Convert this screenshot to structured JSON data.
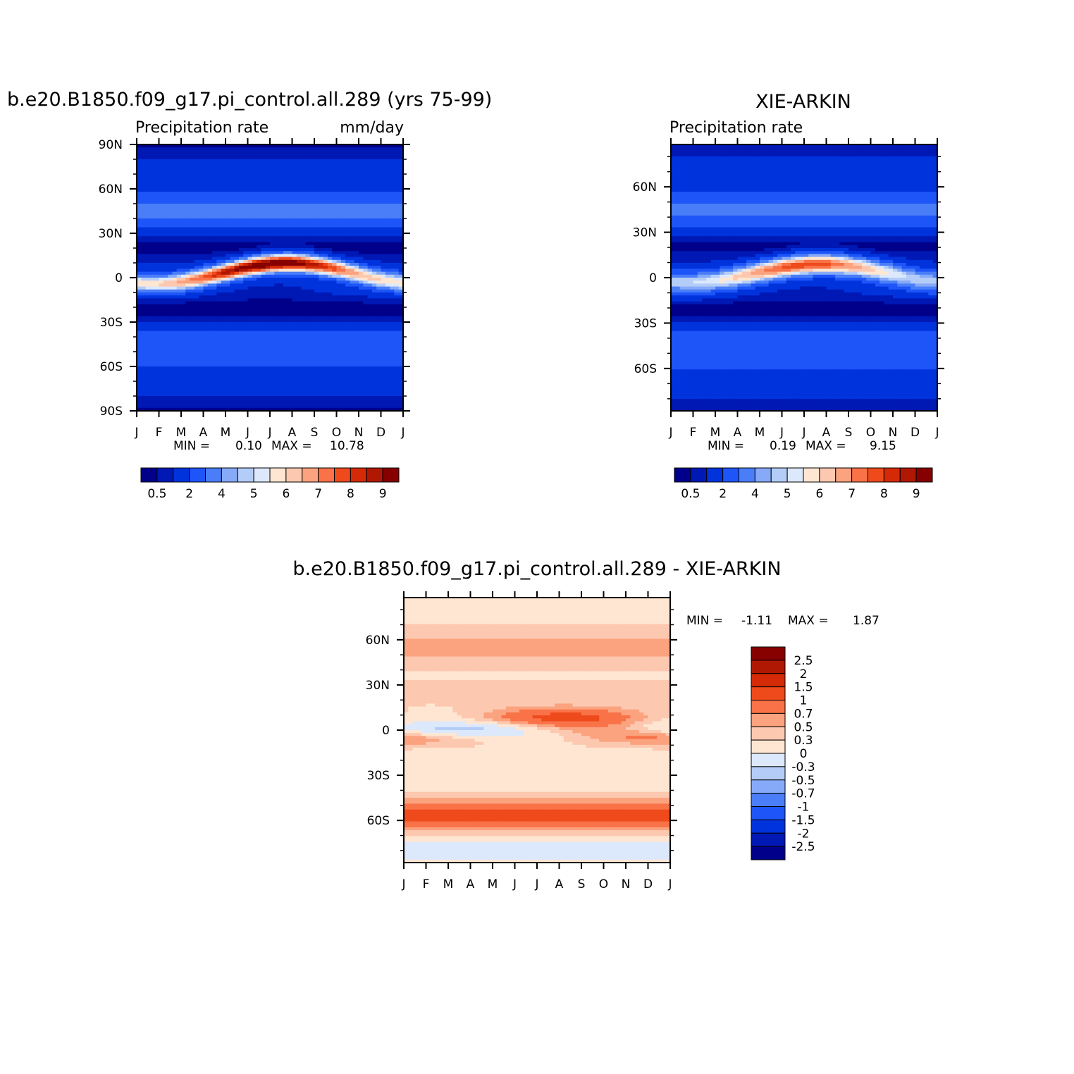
{
  "figure_title_left": "b.e20.B1850.f09_g17.pi_control.all.289 (yrs 75-99)",
  "figure_title_right": "XIE-ARKIN",
  "figure_title_bottom": "b.e20.B1850.f09_g17.pi_control.all.289  -  XIE-ARKIN",
  "colors": {
    "precip_palette": [
      "#00008a",
      "#0018b4",
      "#0033dc",
      "#1e55f8",
      "#4a7ef8",
      "#86aaf8",
      "#b4ccf8",
      "#dce8fc",
      "#fee6d2",
      "#fdc8b0",
      "#fba27e",
      "#f97248",
      "#ee4a1c",
      "#d42a08",
      "#b01804",
      "#860000"
    ],
    "diff_palette": [
      "#00008a",
      "#0018b4",
      "#0033dc",
      "#1e55f8",
      "#4a7ef8",
      "#86aaf8",
      "#b4ccf8",
      "#dce8fc",
      "#fee6d2",
      "#fdc8b0",
      "#fba27e",
      "#f97248",
      "#ee4a1c",
      "#d42a08",
      "#b01804",
      "#860000"
    ]
  },
  "chart_data": [
    {
      "type": "heatmap",
      "panel": "model",
      "subtitle_left": "Precipitation rate",
      "subtitle_right": "mm/day",
      "x_tick_labels": [
        "J",
        "F",
        "M",
        "A",
        "M",
        "J",
        "J",
        "A",
        "S",
        "O",
        "N",
        "D",
        "J"
      ],
      "y_tick_labels": [
        "90N",
        "60N",
        "30N",
        "0",
        "30S",
        "60S",
        "90S"
      ],
      "y_tick_values": [
        90,
        60,
        30,
        0,
        -30,
        -60,
        -90
      ],
      "ylim": [
        -90,
        90
      ],
      "stats": {
        "min_label": "MIN =",
        "min": "0.10",
        "max_label": "MAX =",
        "max": "10.78"
      },
      "colorbar_levels": [
        0.5,
        1,
        2,
        3,
        4,
        4.5,
        5,
        5.5,
        6,
        6.5,
        7,
        7.5,
        8,
        8.5,
        9
      ],
      "colorbar_labels": [
        "0.5",
        "2",
        "4",
        "5",
        "6",
        "7",
        "8",
        "9"
      ],
      "itcz": {
        "lat_start": -5,
        "lat_end": 10,
        "peak": 10.78
      }
    },
    {
      "type": "heatmap",
      "panel": "obs",
      "subtitle_left": "Precipitation rate",
      "x_tick_labels": [
        "J",
        "F",
        "M",
        "A",
        "M",
        "J",
        "J",
        "A",
        "S",
        "O",
        "N",
        "D",
        "J"
      ],
      "y_tick_labels": [
        "60N",
        "30N",
        "0",
        "30S",
        "60S"
      ],
      "y_tick_values": [
        60,
        30,
        0,
        -30,
        -60
      ],
      "ylim": [
        -88,
        88
      ],
      "stats": {
        "min_label": "MIN =",
        "min": "0.19",
        "max_label": "MAX =",
        "max": "9.15"
      },
      "colorbar_levels": [
        0.5,
        1,
        2,
        3,
        4,
        4.5,
        5,
        5.5,
        6,
        6.5,
        7,
        7.5,
        8,
        8.5,
        9
      ],
      "colorbar_labels": [
        "0.5",
        "2",
        "4",
        "5",
        "6",
        "7",
        "8",
        "9"
      ],
      "itcz": {
        "lat_start": -3,
        "lat_end": 7,
        "peak": 9.15
      }
    },
    {
      "type": "heatmap",
      "panel": "difference",
      "x_tick_labels": [
        "J",
        "F",
        "M",
        "A",
        "M",
        "J",
        "J",
        "A",
        "S",
        "O",
        "N",
        "D",
        "J"
      ],
      "y_tick_labels": [
        "60N",
        "30N",
        "0",
        "30S",
        "60S"
      ],
      "y_tick_values": [
        60,
        30,
        0,
        -30,
        -60
      ],
      "ylim": [
        -88,
        88
      ],
      "stats": {
        "min_label": "MIN =",
        "min": "-1.11",
        "max_label": "MAX =",
        "max": "1.87"
      },
      "colorbar_levels": [
        -2.5,
        -2,
        -1.5,
        -1,
        -0.7,
        -0.5,
        -0.3,
        0,
        0.3,
        0.5,
        0.7,
        1,
        1.5,
        2,
        2.5
      ],
      "colorbar_labels": [
        "2.5",
        "2",
        "1.5",
        "1",
        "0.7",
        "0.5",
        "0.3",
        "0",
        "-0.3",
        "-0.5",
        "-0.7",
        "-1",
        "-1.5",
        "-2",
        "-2.5"
      ]
    }
  ]
}
